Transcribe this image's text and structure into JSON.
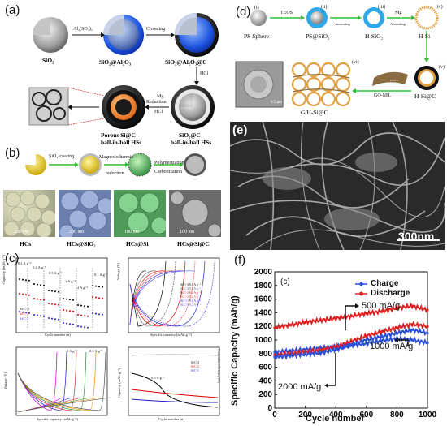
{
  "panels": {
    "a": {
      "label": "(a)",
      "nodes": [
        "SiO₂",
        "SiO₂@Al₂O₃",
        "SiO₂@Al₂O₃@C",
        "SiO₂@C ball-in-ball HSs",
        "Porous Si@C ball-in-ball HSs"
      ],
      "node_lines": {
        "n4a": "SiO₂@C",
        "n4b": "ball-in-ball HSs",
        "n5a": "Porous Si@C",
        "n5b": "ball-in-ball HSs"
      },
      "arrows": {
        "al": "Al₂(SO₄)₃",
        "c": "C coating",
        "hcl": "HCl",
        "mg": "Mg",
        "red": "Reduction",
        "hcl2": "HCl"
      }
    },
    "b": {
      "label": "(b)",
      "steps": {
        "s1": "SiO₂-coating",
        "s2a": "Magnesiothermic",
        "s2b": "reduction",
        "s3a": "Polymerization",
        "s3b": "Carbonization"
      },
      "images": [
        "HCs",
        "HCs@SiO₂",
        "HCs@Si",
        "HCs@Si@C"
      ],
      "scales": [
        "200 nm",
        "200 nm",
        "100 nm",
        "100 nm"
      ]
    },
    "c": {
      "label": "(c)",
      "rate_labels": [
        "0.1 A g⁻¹",
        "0.2 A g⁻¹",
        "0.5 A g⁻¹",
        "1 A g⁻¹",
        "2 A g⁻¹",
        "0.1 A g⁻¹"
      ],
      "legend": [
        "Si/C-3",
        "Si/C-2",
        "Si/C-1"
      ],
      "tr_legend": [
        "Si/C-3 0.1 A g⁻¹",
        "Si/C-3 0.2 A g⁻¹",
        "Si/C-2 0.1 A g⁻¹",
        "Si/C-2 0.2 A g⁻¹",
        "Si/C-1 0.1 A g⁻¹",
        "Si/C-1 0.2 A g⁻¹"
      ],
      "bl_labels": {
        "l1": "2 A g⁻¹",
        "l2": "0.2 A g⁻¹"
      },
      "br_label": "0.5 A g⁻¹",
      "axes": {
        "tl_x": "Cycle number (n)",
        "tl_y": "Capacity (mAh g⁻¹)",
        "tr_x": "Specific capacity (mAh g⁻¹)",
        "tr_y": "Voltage (V)",
        "bl_x": "Specific capacity (mAh g⁻¹)",
        "bl_y": "Voltage (V)",
        "br_x": "Cycle number (n)",
        "br_y": "Capacity (mAh g⁻¹)",
        "br_y2": "Coulombic efficiency (%)"
      }
    },
    "d": {
      "label": "(d)",
      "steps": [
        "PS Sphere",
        "PS@SiO₂",
        "H-SiO₂",
        "H-Si",
        "H-Si@C",
        "G/H-Si@C"
      ],
      "romans": [
        "(i)",
        "(ii)",
        "(iii)",
        "(iv)",
        "(v)",
        "(vi)"
      ],
      "arrows": {
        "teos": "TEOS",
        "ann1": "Annealing",
        "mg": "Mg",
        "ann2": "Annealing",
        "go": "GO-NH₂"
      },
      "inset_scale": "0.5 μm"
    },
    "e": {
      "label": "(e)",
      "scale": "300nm"
    },
    "f": {
      "label": "(f)",
      "inner_label": "(c)",
      "legend": [
        "Charge",
        "Discharge"
      ],
      "annotations": [
        "500 mA/g",
        "1000 mA/g",
        "2000 mA/g"
      ],
      "xlabel": "Cycle number",
      "ylabel": "Specific Capacity (mAh/g)",
      "xticks": [
        "0",
        "200",
        "400",
        "600",
        "800",
        "1000"
      ],
      "yticks": [
        "0",
        "200",
        "400",
        "600",
        "800",
        "1000",
        "1200",
        "1400",
        "1600",
        "1800",
        "2000"
      ]
    }
  },
  "chart_data": {
    "type": "line",
    "xlabel": "Cycle number",
    "ylabel": "Specific Capacity (mAh/g)",
    "xlim": [
      0,
      1000
    ],
    "ylim": [
      0,
      2000
    ],
    "x": [
      0,
      100,
      200,
      300,
      400,
      500,
      600,
      700,
      800,
      900,
      1000
    ],
    "series": [
      {
        "name": "Charge",
        "color": "#2b4fd8",
        "values": [
          820,
          840,
          860,
          880,
          900,
          920,
          950,
          990,
          1020,
          1000,
          960
        ]
      },
      {
        "name": "Discharge",
        "color": "#e02020",
        "values": [
          1180,
          1220,
          1260,
          1290,
          1320,
          1350,
          1390,
          1420,
          1470,
          1500,
          1440
        ]
      }
    ],
    "extra_series": [
      {
        "color": "#e02020",
        "values": [
          780,
          800,
          830,
          850,
          900,
          980,
          1060,
          1120,
          1180,
          1230,
          1200
        ]
      },
      {
        "color": "#2b4fd8",
        "values": [
          750,
          770,
          790,
          810,
          860,
          930,
          1000,
          1050,
          1100,
          1150,
          1100
        ]
      }
    ]
  }
}
